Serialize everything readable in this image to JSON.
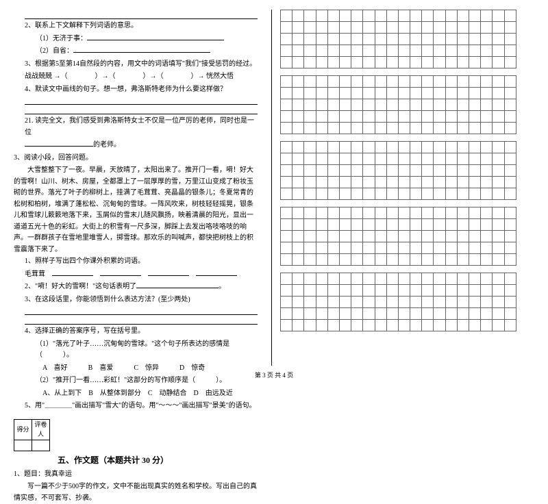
{
  "left": {
    "q2": "2、联系上下文解释下列词语的意思。",
    "q2a": "（1）无济于事：",
    "q2b": "（2）自省：",
    "q3": "3、根据第5至第14自然段的内容，用文中的词语填写\"我们\"接受惩罚的经过。",
    "q3b": "战战兢兢 →（　　　　）→（　　　　）→（　　　　）→ 恍然大悟",
    "q4": "4、默读文中画线的句子。想一想，弗洛斯特老师为什么要这样做？",
    "q21a": "21. 读完全文，我们感受到弗洛斯特女士不仅是一位严厉的老师，同时也是一位",
    "q21b": "的老师。",
    "s3": "3、阅读小段，回答问题。",
    "p1": "大雪整整下了一夜。早晨，天放晴了，太阳出来了。推开门一看，嗬！好大的雪啊！山川、树木、房屋，全都罩上了一层厚厚的雪，万里江山变成了粉妆玉砌的世界。落光了叶子的柳树上，挂满了毛茸茸、亮晶晶的银条儿；冬夏常青的松树和柏树，堆满了蓬松松、沉甸甸的雪球。一阵风吹来，树枝轻轻摇晃，银条儿和雪球儿簌簌地落下来，玉屑似的雪末儿随风飘扬，映着清晨的阳光，显出一道道五光十色的彩虹。大街上的积雪有一尺多深，脚踩上去发出咯吱咯吱的响声。一群群孩子在雪地里堆雪人，掷雪球。那欢乐的叫喊声，都快把树枝上的积雪震落下来了。",
    "sq1": "1、照样子写出四个你课外积累的词语。",
    "sq1b": "毛茸茸",
    "sq2": "2、\"嗬！好大的雪啊！\"这句话表明了",
    "sq3": "3、在这段话里，你能领悟到什么表达方法？(至少两处)",
    "sq4": "4、选择正确的答案序号，写在括号里。",
    "sq4a": "（1）\"落光了叶子……沉甸甸的雪球。\"这个句子所表达的感情是（　　　）。",
    "sq4a_opts": "A　喜好　　　B　喜爱　　　C　惊异　　　D　惊奇",
    "sq4b": "（2）\"推开门一看……彩虹！\"这部分的写作顺序是（　　　）。",
    "sq4b_opts": "A、从上到下　B　从整体到部分　C　动静结合　D　由远及近",
    "sq5": "5、用\"＿＿＿＿\"画出描写\"雪大\"的语句。用\"～～～\"画出描写\"景美\"的语句。",
    "score1": "得分",
    "score2": "评卷人",
    "section5": "五、作文题（本题共计 30 分）",
    "essay1": "1、题目：我真幸运",
    "essay2": "写一篇不少于500字的作文，文中不能出现真实的姓名和学校。写出自己的真情实感，不可套写、抄袭。"
  },
  "grid": {
    "rows": 5,
    "cols": 20,
    "blocks": 5
  },
  "footer": "第 3 页  共 4 页"
}
